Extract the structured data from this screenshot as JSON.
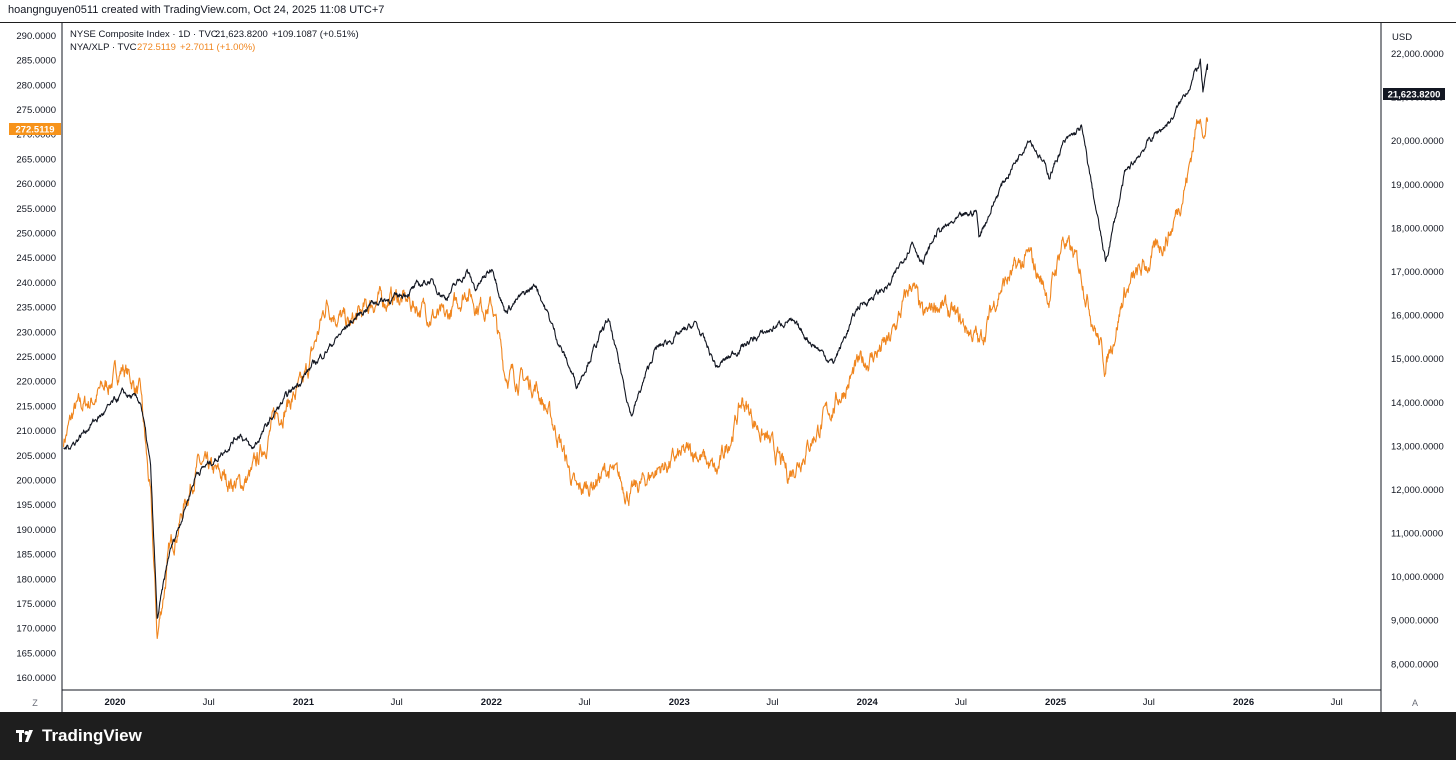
{
  "header": {
    "credit": "hoangnguyen0511 created with TradingView.com, Oct 24, 2025 11:08 UTC+7"
  },
  "legend": {
    "series1": {
      "name": "NYSE Composite Index · 1D · TVC",
      "value": "21,623.8200",
      "change": "+109.1087 (+0.51%)"
    },
    "series2": {
      "name": "NYA/XLP · TVC",
      "value": "272.5119",
      "change": "+2.7011 (+1.00%)"
    }
  },
  "axis": {
    "currency": "USD",
    "left_badge": "272.5119",
    "right_badge": "21,623.8200",
    "left_scale_mode": "Z",
    "right_scale_mode": "A"
  },
  "footer": {
    "brand": "TradingView"
  },
  "colors": {
    "nya": "#131722",
    "ratio": "#f0861f",
    "badge_orange": "#f7931a",
    "badge_black": "#131722"
  },
  "chart_data": {
    "type": "line",
    "x_ticks": [
      "2020",
      "Jul",
      "2021",
      "Jul",
      "2022",
      "Jul",
      "2023",
      "Jul",
      "2024",
      "Jul",
      "2025",
      "Jul",
      "2026",
      "Jul"
    ],
    "x_tick_dates": [
      "2020-01-01",
      "2020-07-01",
      "2021-01-01",
      "2021-07-01",
      "2022-01-01",
      "2022-07-01",
      "2023-01-01",
      "2023-07-01",
      "2024-01-01",
      "2024-07-01",
      "2025-01-01",
      "2025-07-01",
      "2026-01-01",
      "2026-07-01"
    ],
    "left_axis": {
      "label": "NYA/XLP",
      "ylim": [
        157.5,
        292.5
      ],
      "ticks": [
        "160.0000",
        "165.0000",
        "170.0000",
        "175.0000",
        "180.0000",
        "185.0000",
        "190.0000",
        "195.0000",
        "200.0000",
        "205.0000",
        "210.0000",
        "215.0000",
        "220.0000",
        "225.0000",
        "230.0000",
        "235.0000",
        "240.0000",
        "245.0000",
        "250.0000",
        "255.0000",
        "260.0000",
        "265.0000",
        "270.0000",
        "275.0000",
        "280.0000",
        "285.0000",
        "290.0000"
      ]
    },
    "right_axis": {
      "label": "USD",
      "ylim": [
        7400,
        22700
      ],
      "ticks": [
        "8,000.0000",
        "9,000.0000",
        "10,000.0000",
        "11,000.0000",
        "12,000.0000",
        "13,000.0000",
        "14,000.0000",
        "15,000.0000",
        "16,000.0000",
        "17,000.0000",
        "18,000.0000",
        "19,000.0000",
        "20,000.0000",
        "21,000.0000",
        "22,000.0000"
      ]
    },
    "series": [
      {
        "name": "NYSE Composite Index",
        "axis": "right",
        "x": [
          "2019-09-23",
          "2019-10-15",
          "2019-11-15",
          "2019-12-15",
          "2020-01-17",
          "2020-02-20",
          "2020-03-10",
          "2020-03-23",
          "2020-04-15",
          "2020-06-08",
          "2020-07-15",
          "2020-08-31",
          "2020-09-23",
          "2020-11-09",
          "2021-01-01",
          "2021-02-15",
          "2021-03-31",
          "2021-05-15",
          "2021-07-01",
          "2021-09-03",
          "2021-10-04",
          "2021-11-15",
          "2021-12-01",
          "2022-01-04",
          "2022-01-27",
          "2022-03-29",
          "2022-05-11",
          "2022-06-16",
          "2022-08-16",
          "2022-09-30",
          "2022-11-15",
          "2023-02-02",
          "2023-03-15",
          "2023-05-04",
          "2023-07-31",
          "2023-10-27",
          "2023-12-15",
          "2024-02-15",
          "2024-03-28",
          "2024-04-19",
          "2024-05-15",
          "2024-07-31",
          "2024-08-05",
          "2024-09-15",
          "2024-11-11",
          "2024-12-20",
          "2025-01-15",
          "2025-02-20",
          "2025-04-08",
          "2025-05-15",
          "2025-07-01",
          "2025-08-15",
          "2025-09-15",
          "2025-10-09",
          "2025-10-14",
          "2025-10-23"
        ],
        "y": [
          12900,
          13100,
          13500,
          13800,
          14200,
          14000,
          12500,
          9000,
          10500,
          12400,
          12700,
          13300,
          12900,
          13800,
          14600,
          15200,
          15800,
          16300,
          16400,
          16800,
          16400,
          17000,
          16600,
          17100,
          16100,
          16700,
          15400,
          14400,
          15900,
          13700,
          15200,
          15800,
          14800,
          15300,
          15900,
          14900,
          16200,
          16700,
          17700,
          17200,
          17900,
          18400,
          17800,
          18900,
          20100,
          19200,
          19900,
          20300,
          17200,
          19200,
          20000,
          20500,
          21200,
          21800,
          21100,
          21623.82
        ]
      },
      {
        "name": "NYA/XLP",
        "axis": "left",
        "x": [
          "2019-09-23",
          "2019-10-15",
          "2019-11-15",
          "2019-12-15",
          "2020-01-17",
          "2020-02-20",
          "2020-03-10",
          "2020-03-23",
          "2020-04-15",
          "2020-06-08",
          "2020-07-15",
          "2020-08-31",
          "2020-09-23",
          "2020-11-09",
          "2021-01-01",
          "2021-02-15",
          "2021-03-31",
          "2021-05-15",
          "2021-07-01",
          "2021-09-03",
          "2021-10-04",
          "2021-11-15",
          "2021-12-01",
          "2022-01-04",
          "2022-01-27",
          "2022-03-29",
          "2022-05-11",
          "2022-06-16",
          "2022-08-16",
          "2022-09-30",
          "2022-11-15",
          "2023-02-02",
          "2023-03-15",
          "2023-05-04",
          "2023-07-31",
          "2023-10-27",
          "2023-12-15",
          "2024-02-15",
          "2024-03-28",
          "2024-04-19",
          "2024-05-15",
          "2024-07-31",
          "2024-08-05",
          "2024-09-15",
          "2024-11-11",
          "2024-12-20",
          "2025-01-15",
          "2025-02-20",
          "2025-04-08",
          "2025-05-15",
          "2025-07-01",
          "2025-08-15",
          "2025-09-15",
          "2025-10-09",
          "2025-10-14",
          "2025-10-23"
        ],
        "y": [
          208,
          214,
          216,
          219,
          223,
          217,
          196,
          168,
          185,
          203,
          201,
          199,
          201,
          213,
          219,
          236,
          231,
          236,
          237,
          234,
          232,
          239,
          236,
          235,
          222,
          219,
          209,
          197,
          202,
          197,
          202,
          206,
          201,
          216,
          201,
          215,
          223,
          228,
          240,
          232,
          236,
          229,
          227,
          239,
          245,
          237,
          249,
          242,
          223,
          238,
          244,
          251,
          262,
          276,
          269,
          272.51
        ]
      }
    ]
  }
}
